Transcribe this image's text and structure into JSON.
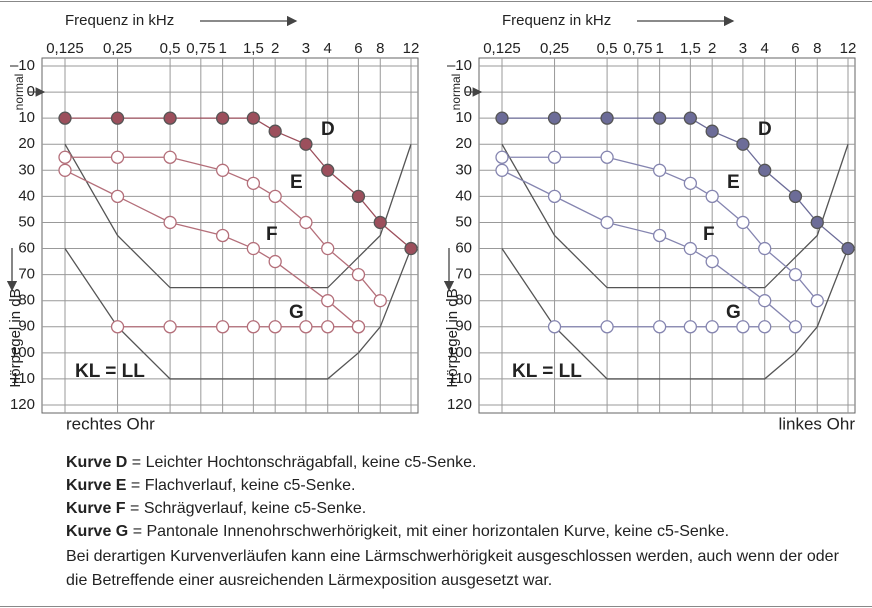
{
  "chart_data": [
    {
      "type": "line",
      "x_label": "Frequenz in kHz",
      "y_label": "Hörpegel in dB",
      "y_note": "normal",
      "annotation": "KL = LL",
      "ear": "rechtes Ohr",
      "xlog": true,
      "xlim": [
        0.125,
        12
      ],
      "xticks": [
        {
          "value": 0.125,
          "label": "0,125"
        },
        {
          "value": 0.25,
          "label": "0,25"
        },
        {
          "value": 0.5,
          "label": "0,5"
        },
        {
          "value": 0.75,
          "label": "0,75"
        },
        1,
        {
          "value": 1.5,
          "label": "1,5"
        },
        2,
        3,
        4,
        6,
        8,
        12
      ],
      "ylim": [
        -10,
        120
      ],
      "y_inverted": true,
      "yticks": [
        {
          "value": -10,
          "label": "–10"
        },
        0,
        10,
        20,
        30,
        40,
        50,
        60,
        70,
        80,
        90,
        100,
        110,
        120
      ],
      "grid": true,
      "series": [
        {
          "color": "#555555",
          "x": [
            0.125,
            0.25,
            0.5,
            4,
            8,
            12
          ],
          "values": [
            20,
            55,
            75,
            75,
            55,
            20
          ],
          "marker": false
        },
        {
          "color": "#555555",
          "x": [
            0.125,
            0.25,
            0.5,
            4,
            6,
            8,
            12
          ],
          "values": [
            60,
            90,
            110,
            110,
            100,
            90,
            60
          ],
          "marker": false
        },
        {
          "name": "D",
          "color": "#9c4f5c",
          "filled": true,
          "x": [
            0.125,
            0.25,
            0.5,
            1,
            1.5,
            2,
            3,
            4,
            6,
            8,
            12
          ],
          "values": [
            10,
            10,
            10,
            10,
            10,
            15,
            20,
            30,
            40,
            50,
            60
          ]
        },
        {
          "name": "E",
          "color": "#b46f7a",
          "filled": false,
          "x": [
            0.125,
            0.25,
            0.5,
            1,
            1.5,
            2,
            3,
            4,
            6,
            8
          ],
          "values": [
            25,
            25,
            25,
            30,
            35,
            40,
            50,
            60,
            70,
            80
          ]
        },
        {
          "name": "F",
          "color": "#b46f7a",
          "filled": false,
          "x": [
            0.125,
            0.25,
            0.5,
            1,
            1.5,
            2,
            4,
            6
          ],
          "values": [
            30,
            40,
            50,
            55,
            60,
            65,
            80,
            90
          ]
        },
        {
          "name": "G",
          "color": "#b46f7a",
          "filled": false,
          "x": [
            0.25,
            0.5,
            1,
            1.5,
            2,
            3,
            4,
            6
          ],
          "values": [
            90,
            90,
            90,
            90,
            90,
            90,
            90,
            90
          ]
        }
      ]
    },
    {
      "type": "line",
      "x_label": "Frequenz in kHz",
      "y_label": "Hörpegel in dB",
      "y_note": "normal",
      "annotation": "KL = LL",
      "ear": "linkes Ohr",
      "xlog": true,
      "xlim": [
        0.125,
        12
      ],
      "xticks": [
        {
          "value": 0.125,
          "label": "0,125"
        },
        {
          "value": 0.25,
          "label": "0,25"
        },
        {
          "value": 0.5,
          "label": "0,5"
        },
        {
          "value": 0.75,
          "label": "0,75"
        },
        1,
        {
          "value": 1.5,
          "label": "1,5"
        },
        2,
        3,
        4,
        6,
        8,
        12
      ],
      "ylim": [
        -10,
        120
      ],
      "y_inverted": true,
      "yticks": [
        {
          "value": -10,
          "label": "–10"
        },
        0,
        10,
        20,
        30,
        40,
        50,
        60,
        70,
        80,
        90,
        100,
        110,
        120
      ],
      "grid": true,
      "series": [
        {
          "color": "#555555",
          "x": [
            0.125,
            0.25,
            0.5,
            4,
            8,
            12
          ],
          "values": [
            20,
            55,
            75,
            75,
            55,
            20
          ],
          "marker": false
        },
        {
          "color": "#555555",
          "x": [
            0.125,
            0.25,
            0.5,
            4,
            6,
            8,
            12
          ],
          "values": [
            60,
            90,
            110,
            110,
            100,
            90,
            60
          ],
          "marker": false
        },
        {
          "name": "D",
          "color": "#6c6c98",
          "filled": true,
          "x": [
            0.125,
            0.25,
            0.5,
            1,
            1.5,
            2,
            3,
            4,
            6,
            8,
            12
          ],
          "values": [
            10,
            10,
            10,
            10,
            10,
            15,
            20,
            30,
            40,
            50,
            60
          ]
        },
        {
          "name": "E",
          "color": "#8585b0",
          "filled": false,
          "x": [
            0.125,
            0.25,
            0.5,
            1,
            1.5,
            2,
            3,
            4,
            6,
            8
          ],
          "values": [
            25,
            25,
            25,
            30,
            35,
            40,
            50,
            60,
            70,
            80
          ]
        },
        {
          "name": "F",
          "color": "#8585b0",
          "filled": false,
          "x": [
            0.125,
            0.25,
            0.5,
            1,
            1.5,
            2,
            4,
            6
          ],
          "values": [
            30,
            40,
            50,
            55,
            60,
            65,
            80,
            90
          ]
        },
        {
          "name": "G",
          "color": "#8585b0",
          "filled": false,
          "x": [
            0.25,
            0.5,
            1,
            1.5,
            2,
            3,
            4
          ],
          "values": [
            90,
            90,
            90,
            90,
            90,
            90,
            90
          ]
        }
      ]
    }
  ],
  "captions": [
    {
      "term": "Kurve D",
      "text": " = Leichter Hochtonschrägabfall, keine c5-Senke."
    },
    {
      "term": "Kurve E",
      "text": " = Flachverlauf, keine c5-Senke."
    },
    {
      "term": "Kurve F",
      "text": " = Schrägverlauf, keine c5-Senke."
    },
    {
      "term": "Kurve G",
      "text": " = Pantonale Innenohrschwerhörigkeit, mit einer horizontalen Kurve, keine c5-Senke."
    }
  ],
  "note": "Bei derartigen Kurvenverläufen kann eine Lärmschwerhörigkeit ausgeschlossen werden, auch wenn der oder die Betreffende einer ausreichenden Lärmexposition ausgesetzt war."
}
